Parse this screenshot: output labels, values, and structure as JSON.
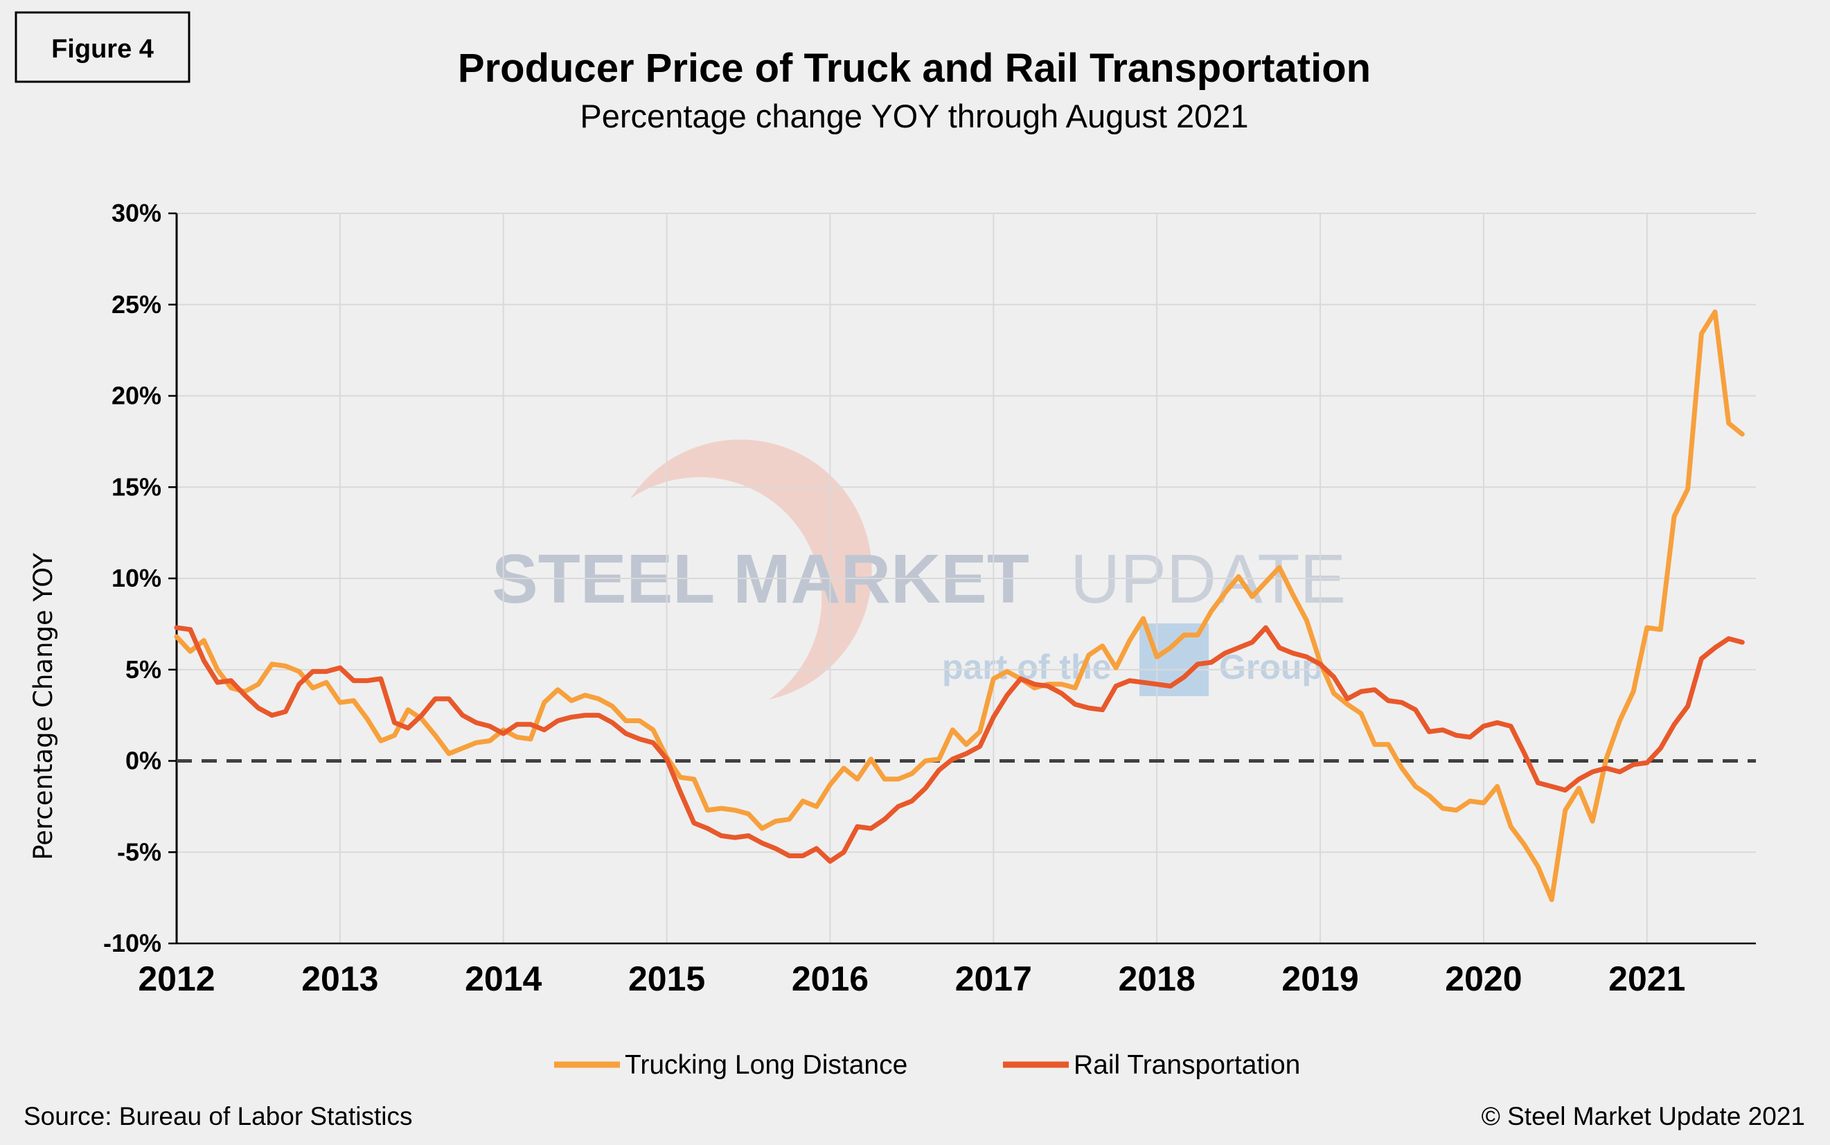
{
  "figure_label": "Figure 4",
  "source": "Source: Bureau of Labor Statistics",
  "copyright": "© Steel Market Update 2021",
  "watermark": {
    "brand_bold": "STEEL MARKET",
    "brand_light": "UPDATE",
    "tagline_left": "part of the",
    "tagline_right": "Group"
  },
  "colors": {
    "trucking": "#F7A03C",
    "rail": "#E8582A",
    "zero_line": "#404040",
    "grid": "#d9d9d9",
    "axis": "#000000"
  },
  "chart_data": {
    "type": "line",
    "title": "Producer Price of Truck and Rail Transportation",
    "subtitle": "Percentage change YOY through August 2021",
    "xlabel": "",
    "ylabel": "Percentage Change YOY",
    "x_start": "2012-01",
    "x_end": "2021-08",
    "x_ticks": [
      "2012",
      "2013",
      "2014",
      "2015",
      "2016",
      "2017",
      "2018",
      "2019",
      "2020",
      "2021"
    ],
    "ylim": [
      -10,
      30
    ],
    "y_ticks": [
      "-10%",
      "-5%",
      "0%",
      "5%",
      "10%",
      "15%",
      "20%",
      "25%",
      "30%"
    ],
    "reference_line": 0,
    "grid": "vertical",
    "legend_position": "bottom",
    "series": [
      {
        "name": "Trucking Long Distance",
        "values": [
          6.8,
          6.0,
          6.6,
          5.0,
          4.0,
          3.8,
          4.2,
          5.3,
          5.2,
          4.9,
          4.0,
          4.3,
          3.2,
          3.3,
          2.3,
          1.1,
          1.4,
          2.8,
          2.3,
          1.4,
          0.4,
          0.7,
          1.0,
          1.1,
          1.7,
          1.3,
          1.2,
          3.2,
          3.9,
          3.3,
          3.6,
          3.4,
          3.0,
          2.2,
          2.2,
          1.7,
          0.2,
          -0.9,
          -1.0,
          -2.7,
          -2.6,
          -2.7,
          -2.9,
          -3.7,
          -3.3,
          -3.2,
          -2.2,
          -2.5,
          -1.3,
          -0.4,
          -1.0,
          0.1,
          -1.0,
          -1.0,
          -0.7,
          0.0,
          0.1,
          1.7,
          0.9,
          1.6,
          4.5,
          4.9,
          4.5,
          4.0,
          4.2,
          4.2,
          4.0,
          5.8,
          6.3,
          5.1,
          6.6,
          7.8,
          5.7,
          6.2,
          6.9,
          6.9,
          8.2,
          9.2,
          10.1,
          9.0,
          9.8,
          10.6,
          9.1,
          7.7,
          5.4,
          3.7,
          3.1,
          2.6,
          0.9,
          0.9,
          -0.4,
          -1.4,
          -1.9,
          -2.6,
          -2.7,
          -2.2,
          -2.3,
          -1.4,
          -3.6,
          -4.6,
          -5.8,
          -7.6,
          -2.7,
          -1.5,
          -3.3,
          0.1,
          2.2,
          3.8,
          7.3,
          7.2,
          13.4,
          14.9,
          23.4,
          24.6,
          18.5,
          17.9
        ]
      },
      {
        "name": "Rail Transportation",
        "values": [
          7.3,
          7.2,
          5.5,
          4.3,
          4.4,
          3.6,
          2.9,
          2.5,
          2.7,
          4.2,
          4.9,
          4.9,
          5.1,
          4.4,
          4.4,
          4.5,
          2.1,
          1.8,
          2.5,
          3.4,
          3.4,
          2.5,
          2.1,
          1.9,
          1.5,
          2.0,
          2.0,
          1.7,
          2.2,
          2.4,
          2.5,
          2.5,
          2.1,
          1.5,
          1.2,
          1.0,
          0.1,
          -1.7,
          -3.4,
          -3.7,
          -4.1,
          -4.2,
          -4.1,
          -4.5,
          -4.8,
          -5.2,
          -5.2,
          -4.8,
          -5.5,
          -5.0,
          -3.6,
          -3.7,
          -3.2,
          -2.5,
          -2.2,
          -1.5,
          -0.5,
          0.1,
          0.4,
          0.8,
          2.4,
          3.6,
          4.5,
          4.2,
          4.1,
          3.7,
          3.1,
          2.9,
          2.8,
          4.1,
          4.4,
          4.3,
          4.2,
          4.1,
          4.6,
          5.3,
          5.4,
          5.9,
          6.2,
          6.5,
          7.3,
          6.2,
          5.9,
          5.7,
          5.3,
          4.6,
          3.4,
          3.8,
          3.9,
          3.3,
          3.2,
          2.8,
          1.6,
          1.7,
          1.4,
          1.3,
          1.9,
          2.1,
          1.9,
          0.4,
          -1.2,
          -1.4,
          -1.6,
          -1.0,
          -0.6,
          -0.4,
          -0.6,
          -0.2,
          -0.1,
          0.7,
          2.0,
          3.0,
          5.6,
          6.2,
          6.7,
          6.5
        ]
      }
    ]
  }
}
